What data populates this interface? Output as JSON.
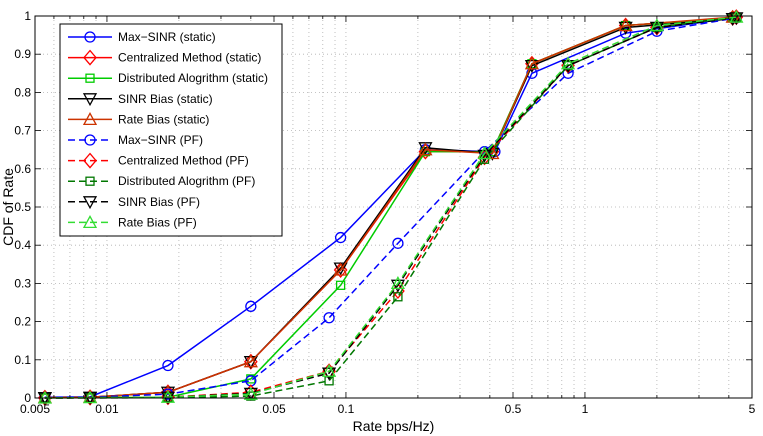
{
  "chart_data": {
    "type": "line",
    "title": "",
    "xlabel": "Rate  bps/Hz)",
    "ylabel": "CDF of Rate",
    "xscale": "log",
    "xlim": [
      0.005,
      5
    ],
    "ylim": [
      0,
      1
    ],
    "grid": true,
    "legend_position": "top-left",
    "x_ticks": [
      {
        "v": 0.005,
        "label": "0.005"
      },
      {
        "v": 0.01,
        "label": "0.01"
      },
      {
        "v": 0.05,
        "label": "0.05"
      },
      {
        "v": 0.1,
        "label": "0.1"
      },
      {
        "v": 0.5,
        "label": "0.5"
      },
      {
        "v": 1,
        "label": "1"
      },
      {
        "v": 5,
        "label": "5"
      }
    ],
    "x_minor": [
      0.006,
      0.007,
      0.008,
      0.009,
      0.02,
      0.03,
      0.04,
      0.06,
      0.07,
      0.08,
      0.09,
      0.2,
      0.3,
      0.4,
      0.6,
      0.7,
      0.8,
      0.9,
      2,
      3,
      4
    ],
    "y_ticks": [
      {
        "v": 0,
        "label": "0"
      },
      {
        "v": 0.1,
        "label": "0.1"
      },
      {
        "v": 0.2,
        "label": "0.2"
      },
      {
        "v": 0.3,
        "label": "0.3"
      },
      {
        "v": 0.4,
        "label": "0.4"
      },
      {
        "v": 0.5,
        "label": "0.5"
      },
      {
        "v": 0.6,
        "label": "0.6"
      },
      {
        "v": 0.7,
        "label": "0.7"
      },
      {
        "v": 0.8,
        "label": "0.8"
      },
      {
        "v": 0.9,
        "label": "0.9"
      },
      {
        "v": 1,
        "label": "1"
      }
    ],
    "series": [
      {
        "name": "Max−SINR (static)",
        "color": "#0000ff",
        "dash": false,
        "marker": "circle",
        "points": [
          [
            0.0055,
            0.002
          ],
          [
            0.0085,
            0.003
          ],
          [
            0.018,
            0.085
          ],
          [
            0.04,
            0.24
          ],
          [
            0.095,
            0.42
          ],
          [
            0.215,
            0.65
          ],
          [
            0.42,
            0.645
          ],
          [
            0.6,
            0.85
          ],
          [
            1.48,
            0.955
          ],
          [
            4.15,
            0.995
          ]
        ]
      },
      {
        "name": "Centralized Method (static)",
        "color": "#ff0000",
        "dash": false,
        "marker": "diamond",
        "points": [
          [
            0.0055,
            0.001
          ],
          [
            0.0085,
            0.002
          ],
          [
            0.018,
            0.015
          ],
          [
            0.04,
            0.095
          ],
          [
            0.095,
            0.335
          ],
          [
            0.215,
            0.645
          ],
          [
            0.41,
            0.645
          ],
          [
            0.6,
            0.875
          ],
          [
            1.48,
            0.975
          ],
          [
            4.15,
            0.995
          ]
        ]
      },
      {
        "name": "Distributed Alogrithm (static)",
        "color": "#00cc00",
        "dash": false,
        "marker": "square",
        "points": [
          [
            0.0055,
            0.0
          ],
          [
            0.0085,
            0.001
          ],
          [
            0.018,
            0.002
          ],
          [
            0.04,
            0.05
          ],
          [
            0.095,
            0.295
          ],
          [
            0.215,
            0.645
          ],
          [
            0.41,
            0.645
          ],
          [
            0.6,
            0.875
          ],
          [
            1.48,
            0.975
          ],
          [
            4.15,
            0.995
          ]
        ]
      },
      {
        "name": "SINR Bias (static)",
        "color": "#000000",
        "dash": false,
        "marker": "triangle-down",
        "points": [
          [
            0.0055,
            0.001
          ],
          [
            0.0085,
            0.002
          ],
          [
            0.018,
            0.015
          ],
          [
            0.04,
            0.095
          ],
          [
            0.095,
            0.34
          ],
          [
            0.215,
            0.655
          ],
          [
            0.41,
            0.64
          ],
          [
            0.6,
            0.87
          ],
          [
            1.48,
            0.97
          ],
          [
            4.15,
            0.993
          ]
        ]
      },
      {
        "name": "Rate Bias (static)",
        "color": "#cc3300",
        "dash": false,
        "marker": "triangle-up",
        "points": [
          [
            0.0055,
            0.001
          ],
          [
            0.0085,
            0.002
          ],
          [
            0.018,
            0.015
          ],
          [
            0.04,
            0.095
          ],
          [
            0.095,
            0.335
          ],
          [
            0.215,
            0.65
          ],
          [
            0.41,
            0.64
          ],
          [
            0.6,
            0.875
          ],
          [
            1.48,
            0.975
          ],
          [
            4.15,
            0.997
          ]
        ]
      },
      {
        "name": "Max−SINR (PF)",
        "color": "#0000ff",
        "dash": true,
        "marker": "circle",
        "points": [
          [
            0.0055,
            0.002
          ],
          [
            0.0085,
            0.002
          ],
          [
            0.018,
            0.01
          ],
          [
            0.04,
            0.045
          ],
          [
            0.085,
            0.21
          ],
          [
            0.165,
            0.405
          ],
          [
            0.38,
            0.645
          ],
          [
            0.85,
            0.85
          ],
          [
            2.0,
            0.96
          ],
          [
            4.3,
            0.995
          ]
        ]
      },
      {
        "name": "Centralized Method (PF)",
        "color": "#ff0000",
        "dash": true,
        "marker": "diamond",
        "points": [
          [
            0.0055,
            0.0
          ],
          [
            0.0085,
            0.001
          ],
          [
            0.018,
            0.002
          ],
          [
            0.04,
            0.015
          ],
          [
            0.085,
            0.07
          ],
          [
            0.165,
            0.28
          ],
          [
            0.38,
            0.63
          ],
          [
            0.85,
            0.87
          ],
          [
            2.0,
            0.97
          ],
          [
            4.3,
            0.997
          ]
        ]
      },
      {
        "name": "Distributed Alogrithm (PF)",
        "color": "#007700",
        "dash": true,
        "marker": "square",
        "points": [
          [
            0.0055,
            0.0
          ],
          [
            0.0085,
            0.0
          ],
          [
            0.018,
            0.001
          ],
          [
            0.04,
            0.005
          ],
          [
            0.085,
            0.045
          ],
          [
            0.165,
            0.265
          ],
          [
            0.38,
            0.625
          ],
          [
            0.85,
            0.87
          ],
          [
            2.0,
            0.97
          ],
          [
            4.3,
            0.997
          ]
        ]
      },
      {
        "name": "SINR Bias (PF)",
        "color": "#000000",
        "dash": true,
        "marker": "triangle-down",
        "points": [
          [
            0.0055,
            0.0
          ],
          [
            0.0085,
            0.001
          ],
          [
            0.018,
            0.002
          ],
          [
            0.04,
            0.012
          ],
          [
            0.085,
            0.065
          ],
          [
            0.165,
            0.295
          ],
          [
            0.38,
            0.635
          ],
          [
            0.85,
            0.87
          ],
          [
            2.0,
            0.97
          ],
          [
            4.3,
            0.995
          ]
        ]
      },
      {
        "name": "Rate Bias (PF)",
        "color": "#33dd33",
        "dash": true,
        "marker": "triangle-up",
        "points": [
          [
            0.0055,
            0.0
          ],
          [
            0.0085,
            0.001
          ],
          [
            0.018,
            0.002
          ],
          [
            0.04,
            0.01
          ],
          [
            0.085,
            0.07
          ],
          [
            0.165,
            0.3
          ],
          [
            0.38,
            0.64
          ],
          [
            0.85,
            0.875
          ],
          [
            2.0,
            0.975
          ],
          [
            4.3,
            0.997
          ]
        ]
      }
    ]
  }
}
